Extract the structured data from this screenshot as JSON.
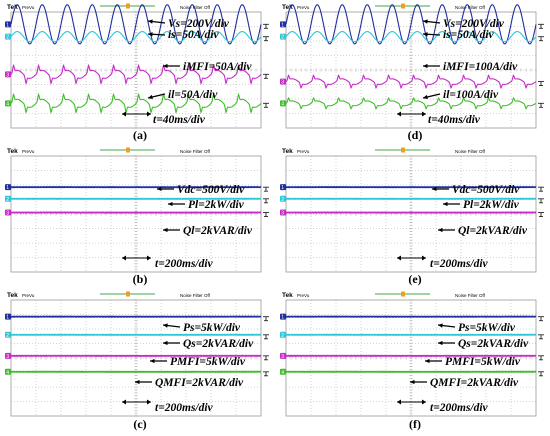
{
  "chart_data": [
    {
      "id": "a",
      "type": "line",
      "caption": "(a)",
      "header": {
        "brand": "Tek",
        "mode": "PreVu",
        "filter": "Noise Filter Off"
      },
      "channels": [
        "1",
        "2",
        "3",
        "4"
      ],
      "annotations": [
        {
          "label": "Vs=200V/div"
        },
        {
          "label": "is=50A/div"
        },
        {
          "label": "iMFI=50A/div"
        },
        {
          "label": "il=50A/div"
        },
        {
          "label": "t=40ms/div"
        }
      ],
      "series": [
        {
          "channel": 1,
          "color": "#1f2f9e",
          "shape": "sine",
          "cycles": 10,
          "amplitude_div": 1.35,
          "offset_div": 3.15
        },
        {
          "channel": 2,
          "color": "#2ec7d8",
          "shape": "sine",
          "cycles": 10,
          "amplitude_div": 0.35,
          "offset_div": 2.3
        },
        {
          "channel": 3,
          "color": "#c42cc8",
          "shape": "pulse",
          "cycles": 10,
          "amplitude_div": 0.5,
          "offset_div": -0.3
        },
        {
          "channel": 4,
          "color": "#3fbe2a",
          "shape": "pulse",
          "cycles": 10,
          "amplitude_div": 0.5,
          "offset_div": -2.3
        }
      ]
    },
    {
      "id": "b",
      "type": "line",
      "caption": "(b)",
      "header": {
        "brand": "Tek",
        "mode": "PreVu",
        "filter": "Noise Filter Off"
      },
      "channels": [
        "1",
        "2",
        "3"
      ],
      "annotations": [
        {
          "label": "Vdc=500V/div"
        },
        {
          "label": "Pl=2kW/div"
        },
        {
          "label": "Ql=2kVAR/div"
        },
        {
          "label": "t=200ms/div"
        }
      ],
      "series": [
        {
          "channel": 1,
          "color": "#1f2f9e",
          "shape": "flat",
          "offset_div": 1.85
        },
        {
          "channel": 2,
          "color": "#2ec7d8",
          "shape": "flat",
          "offset_div": 1.05
        },
        {
          "channel": 3,
          "color": "#c42cc8",
          "shape": "flat",
          "offset_div": 0.1
        }
      ]
    },
    {
      "id": "c",
      "type": "line",
      "caption": "(c)",
      "header": {
        "brand": "Tek",
        "mode": "PreVu",
        "filter": "Noise Filter Off"
      },
      "channels": [
        "1",
        "2",
        "3",
        "4"
      ],
      "annotations": [
        {
          "label": "Ps=5kW/div"
        },
        {
          "label": "Qs=2kVAR/div"
        },
        {
          "label": "PMFI=5kW/div"
        },
        {
          "label": "QMFI=2kVAR/div"
        },
        {
          "label": "t=200ms/div"
        }
      ],
      "series": [
        {
          "channel": 1,
          "color": "#1f2f9e",
          "shape": "flat",
          "offset_div": 2.85
        },
        {
          "channel": 2,
          "color": "#2ec7d8",
          "shape": "flat",
          "offset_div": 1.6
        },
        {
          "channel": 3,
          "color": "#c42cc8",
          "shape": "flat",
          "offset_div": 0.15
        },
        {
          "channel": 4,
          "color": "#3fbe2a",
          "shape": "flat",
          "offset_div": -0.95
        }
      ]
    },
    {
      "id": "d",
      "type": "line",
      "caption": "(d)",
      "header": {
        "brand": "Tek",
        "mode": "PreVu",
        "filter": "Noise Filter Off"
      },
      "channels": [
        "1",
        "2",
        "3",
        "4"
      ],
      "annotations": [
        {
          "label": "Vs=200V/div"
        },
        {
          "label": "is=50A/div"
        },
        {
          "label": "iMFI=100A/div"
        },
        {
          "label": "il=100A/div"
        },
        {
          "label": "t=40ms/div"
        }
      ],
      "series": [
        {
          "channel": 1,
          "color": "#1f2f9e",
          "shape": "sine",
          "cycles": 10,
          "amplitude_div": 1.35,
          "offset_div": 3.15
        },
        {
          "channel": 2,
          "color": "#2ec7d8",
          "shape": "sine",
          "cycles": 10,
          "amplitude_div": 0.35,
          "offset_div": 2.3
        },
        {
          "channel": 3,
          "color": "#c42cc8",
          "shape": "pulse",
          "cycles": 10,
          "amplitude_div": 0.35,
          "offset_div": -0.8
        },
        {
          "channel": 4,
          "color": "#3fbe2a",
          "shape": "pulse",
          "cycles": 10,
          "amplitude_div": 0.3,
          "offset_div": -2.3
        }
      ]
    },
    {
      "id": "e",
      "type": "line",
      "caption": "(e)",
      "header": {
        "brand": "Tek",
        "mode": "PreVu",
        "filter": "Noise Filter Off"
      },
      "channels": [
        "1",
        "2",
        "3"
      ],
      "annotations": [
        {
          "label": "Vdc=500V/div"
        },
        {
          "label": "Pl=2kW/div"
        },
        {
          "label": "Ql=2kVAR/div"
        },
        {
          "label": "t=200ms/div"
        }
      ],
      "series": [
        {
          "channel": 1,
          "color": "#1f2f9e",
          "shape": "flat",
          "offset_div": 1.85
        },
        {
          "channel": 2,
          "color": "#2ec7d8",
          "shape": "flat",
          "offset_div": 1.05
        },
        {
          "channel": 3,
          "color": "#c42cc8",
          "shape": "flat",
          "offset_div": 0.1
        }
      ]
    },
    {
      "id": "f",
      "type": "line",
      "caption": "(f)",
      "header": {
        "brand": "Tek",
        "mode": "PreVu",
        "filter": "Noise Filter Off"
      },
      "channels": [
        "1",
        "2",
        "3",
        "4"
      ],
      "annotations": [
        {
          "label": "Ps=5kW/div"
        },
        {
          "label": "Qs=2kVAR/div"
        },
        {
          "label": "PMFI=5kW/div"
        },
        {
          "label": "QMFI=2kVAR/div"
        },
        {
          "label": "t=200ms/div"
        }
      ],
      "series": [
        {
          "channel": 1,
          "color": "#1f2f9e",
          "shape": "flat",
          "offset_div": 2.85
        },
        {
          "channel": 2,
          "color": "#2ec7d8",
          "shape": "flat",
          "offset_div": 1.6
        },
        {
          "channel": 3,
          "color": "#c42cc8",
          "shape": "flat",
          "offset_div": 0.15
        },
        {
          "channel": 4,
          "color": "#3fbe2a",
          "shape": "flat",
          "offset_div": -0.95
        }
      ]
    }
  ]
}
